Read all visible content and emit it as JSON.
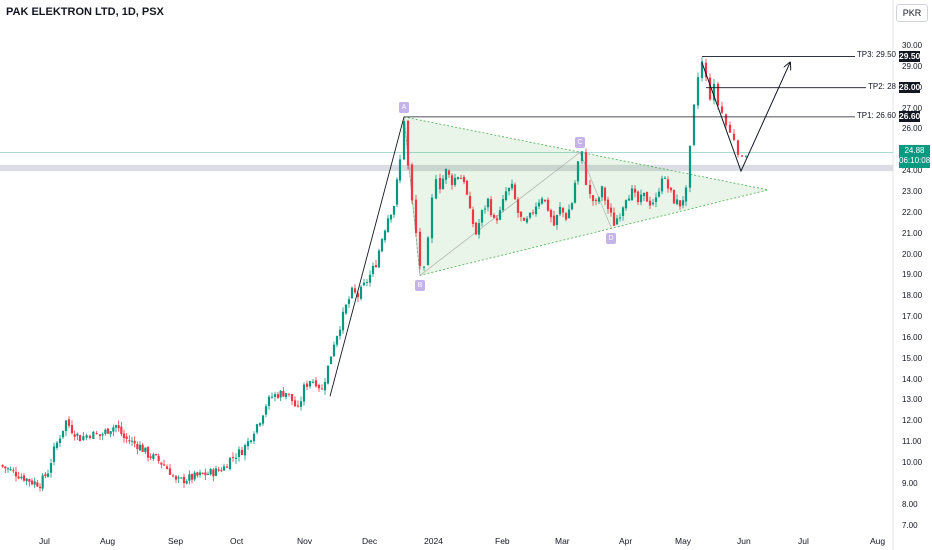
{
  "header": {
    "title": "PAK ELEKTRON LTD, 1D, PSX",
    "currency": "PKR"
  },
  "colors": {
    "up": "#089981",
    "down": "#f23645",
    "triangle": "#4caf50",
    "line": "#131722",
    "label": "#c4b3e8",
    "band": "#d1d4dc"
  },
  "chart_data": {
    "type": "candlestick",
    "title": "PAK ELEKTRON LTD, 1D, PSX",
    "y_axis": {
      "ticks": [
        "30.00",
        "29.00",
        "28.00",
        "27.00",
        "26.00",
        "25.00",
        "24.00",
        "23.00",
        "22.00",
        "21.00",
        "20.00",
        "19.00",
        "18.00",
        "17.00",
        "16.00",
        "15.00",
        "14.00",
        "13.00",
        "12.00",
        "11.00",
        "10.00",
        "9.00",
        "8.00",
        "7.00"
      ],
      "range": [
        6.5,
        31.5
      ]
    },
    "x_axis": {
      "labels": [
        "Jul",
        "Aug",
        "Sep",
        "Oct",
        "Nov",
        "Dec",
        "2024",
        "Feb",
        "Mar",
        "Apr",
        "May",
        "Jun",
        "Jul",
        "Aug"
      ]
    },
    "last_price": "24.88",
    "countdown": "06:10:08",
    "targets": [
      {
        "label": "TP3: 29.50",
        "value": "29.50",
        "y": 29.5
      },
      {
        "label": "TP2: 28",
        "value": "28.00",
        "y": 28.0
      },
      {
        "label": "TP1: 26.60",
        "value": "26.60",
        "y": 26.6
      }
    ],
    "pattern_points": [
      {
        "label": "A",
        "price": 26.6
      },
      {
        "label": "B",
        "price": 19.0
      },
      {
        "label": "C",
        "price": 24.9
      },
      {
        "label": "D",
        "price": 21.2
      }
    ],
    "support_zone": [
      24.0,
      24.3
    ],
    "price_path": [
      [
        0,
        9.9
      ],
      [
        8,
        9.7
      ],
      [
        16,
        9.5
      ],
      [
        24,
        9.3
      ],
      [
        32,
        9.1
      ],
      [
        40,
        9.0
      ],
      [
        48,
        9.6
      ],
      [
        54,
        10.6
      ],
      [
        60,
        11.3
      ],
      [
        66,
        12.0
      ],
      [
        72,
        11.6
      ],
      [
        80,
        11.2
      ],
      [
        90,
        11.4
      ],
      [
        100,
        11.3
      ],
      [
        108,
        11.6
      ],
      [
        116,
        11.8
      ],
      [
        124,
        11.2
      ],
      [
        132,
        11.0
      ],
      [
        140,
        10.8
      ],
      [
        148,
        10.4
      ],
      [
        156,
        10.2
      ],
      [
        164,
        9.9
      ],
      [
        170,
        9.6
      ],
      [
        176,
        9.1
      ],
      [
        184,
        9.2
      ],
      [
        192,
        9.3
      ],
      [
        200,
        9.4
      ],
      [
        208,
        9.5
      ],
      [
        216,
        9.6
      ],
      [
        224,
        9.8
      ],
      [
        230,
        10.2
      ],
      [
        236,
        10.4
      ],
      [
        242,
        10.6
      ],
      [
        248,
        11.0
      ],
      [
        254,
        11.6
      ],
      [
        260,
        12.1
      ],
      [
        266,
        12.8
      ],
      [
        272,
        13.2
      ],
      [
        278,
        13.3
      ],
      [
        286,
        13.4
      ],
      [
        292,
        13.0
      ],
      [
        298,
        12.5
      ],
      [
        304,
        13.6
      ],
      [
        310,
        14.0
      ],
      [
        316,
        13.9
      ],
      [
        322,
        13.5
      ],
      [
        328,
        14.6
      ],
      [
        334,
        15.8
      ],
      [
        340,
        16.6
      ],
      [
        346,
        17.5
      ],
      [
        352,
        18.2
      ],
      [
        358,
        18.0
      ],
      [
        364,
        18.5
      ],
      [
        370,
        19.0
      ],
      [
        376,
        19.6
      ],
      [
        382,
        20.8
      ],
      [
        388,
        21.8
      ],
      [
        394,
        22.4
      ],
      [
        400,
        24.5
      ],
      [
        404,
        26.5
      ],
      [
        408,
        24.2
      ],
      [
        412,
        22.5
      ],
      [
        416,
        21.0
      ],
      [
        420,
        19.5
      ],
      [
        424,
        19.2
      ],
      [
        428,
        20.6
      ],
      [
        432,
        22.6
      ],
      [
        436,
        23.8
      ],
      [
        440,
        23.3
      ],
      [
        446,
        24.0
      ],
      [
        452,
        23.5
      ],
      [
        458,
        23.8
      ],
      [
        464,
        23.6
      ],
      [
        470,
        22.0
      ],
      [
        476,
        21.0
      ],
      [
        482,
        22.0
      ],
      [
        488,
        22.6
      ],
      [
        494,
        21.6
      ],
      [
        500,
        22.0
      ],
      [
        506,
        23.0
      ],
      [
        512,
        23.2
      ],
      [
        518,
        22.0
      ],
      [
        524,
        21.4
      ],
      [
        530,
        21.8
      ],
      [
        536,
        22.4
      ],
      [
        542,
        22.8
      ],
      [
        548,
        22.2
      ],
      [
        554,
        21.4
      ],
      [
        560,
        22.2
      ],
      [
        566,
        21.8
      ],
      [
        572,
        22.5
      ],
      [
        578,
        24.4
      ],
      [
        582,
        24.8
      ],
      [
        586,
        23.5
      ],
      [
        590,
        22.8
      ],
      [
        596,
        22.4
      ],
      [
        602,
        23.1
      ],
      [
        608,
        22.2
      ],
      [
        614,
        21.5
      ],
      [
        620,
        22.0
      ],
      [
        626,
        22.8
      ],
      [
        632,
        23.0
      ],
      [
        638,
        22.5
      ],
      [
        644,
        22.8
      ],
      [
        650,
        22.5
      ],
      [
        656,
        22.6
      ],
      [
        662,
        23.8
      ],
      [
        668,
        23.2
      ],
      [
        674,
        22.6
      ],
      [
        680,
        22.4
      ],
      [
        686,
        23.0
      ],
      [
        690,
        25.0
      ],
      [
        694,
        27.0
      ],
      [
        698,
        28.5
      ],
      [
        702,
        29.2
      ],
      [
        706,
        28.4
      ],
      [
        710,
        27.6
      ],
      [
        714,
        28.0
      ],
      [
        718,
        27.2
      ],
      [
        722,
        26.8
      ],
      [
        726,
        26.2
      ],
      [
        730,
        25.8
      ],
      [
        734,
        25.6
      ],
      [
        738,
        25.0
      ],
      [
        742,
        24.5
      ],
      [
        746,
        24.88
      ]
    ]
  }
}
